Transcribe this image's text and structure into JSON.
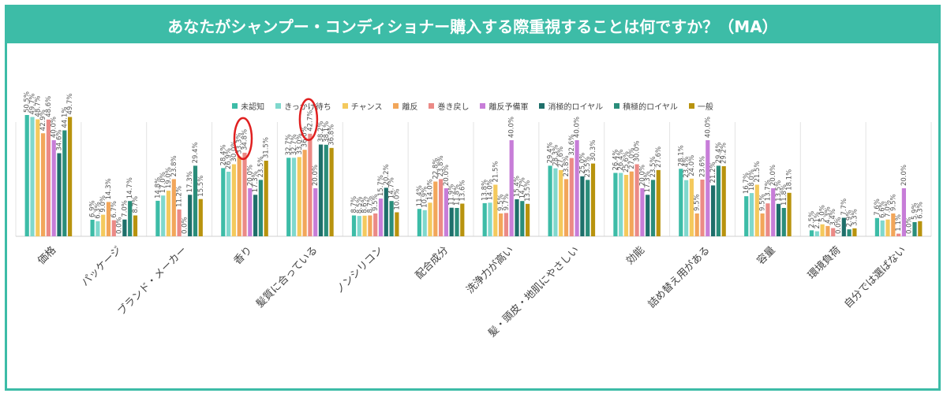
{
  "title": "あなたがシャンプー・コンディショナー購入する際重視することは何ですか？（MA）",
  "chart_data": {
    "type": "bar",
    "ylim": [
      0,
      60
    ],
    "categories": [
      "価格",
      "パッケージ",
      "ブランド・メーカー",
      "香り",
      "髪質に合っている",
      "ノンシリコン",
      "配合成分",
      "洗浄力が高い",
      "髪・頭皮・地肌にやさしい",
      "効能",
      "詰め替え用がある",
      "容量",
      "環境負荷",
      "自分では選ばない"
    ],
    "series": [
      {
        "name": "未認知",
        "color": "#3dbca7",
        "values": [
          50.5,
          6.9,
          14.8,
          28.4,
          32.7,
          8.7,
          11.4,
          13.8,
          29.4,
          26.4,
          28.1,
          16.7,
          2.5,
          7.6
        ]
      },
      {
        "name": "きっかけ待ち",
        "color": "#7fd8cd",
        "values": [
          49.7,
          6.3,
          17.0,
          26.9,
          32.7,
          8.5,
          10.9,
          14.0,
          28.3,
          26.4,
          23.4,
          18.0,
          2.1,
          6.6
        ]
      },
      {
        "name": "チャンス",
        "color": "#f4c95d",
        "values": [
          48.7,
          9.0,
          19.0,
          30.0,
          33.0,
          8.6,
          14.0,
          21.5,
          27.6,
          25.6,
          24.0,
          21.5,
          5.0,
          7.0
        ]
      },
      {
        "name": "離反",
        "color": "#f2a65a",
        "values": [
          42.9,
          14.3,
          23.8,
          33.3,
          36.0,
          8.7,
          22.8,
          9.5,
          23.8,
          27.0,
          9.5,
          9.5,
          4.3,
          9.5
        ]
      },
      {
        "name": "巻き戻し",
        "color": "#eb8a86",
        "values": [
          48.6,
          6.7,
          11.2,
          34.8,
          42.7,
          9.5,
          23.8,
          9.7,
          32.6,
          30.0,
          23.6,
          13.7,
          3.4,
          1.1
        ]
      },
      {
        "name": "離反予備軍",
        "color": "#c77dd8",
        "values": [
          40.0,
          0.0,
          0.0,
          20.0,
          20.0,
          15.7,
          20.0,
          40.0,
          40.0,
          20.0,
          40.0,
          20.0,
          0.0,
          20.0
        ]
      },
      {
        "name": "消極的ロイヤル",
        "color": "#1e6f6a",
        "values": [
          34.6,
          7.0,
          17.3,
          17.3,
          38.2,
          20.2,
          11.9,
          15.4,
          25.0,
          17.3,
          21.2,
          13.5,
          7.7,
          0.0
        ]
      },
      {
        "name": "積極的ロイヤル",
        "color": "#2a8d7a",
        "values": [
          44.1,
          14.7,
          29.4,
          23.5,
          38.1,
          14.7,
          11.8,
          14.7,
          23.5,
          23.5,
          29.4,
          11.8,
          2.9,
          5.9
        ]
      },
      {
        "name": "一般",
        "color": "#b8930e",
        "values": [
          49.7,
          8.7,
          15.5,
          31.5,
          36.8,
          10.0,
          13.6,
          13.5,
          30.3,
          27.6,
          29.2,
          18.1,
          3.3,
          6.3
        ]
      }
    ]
  },
  "annotation": {
    "color": "#e02020"
  }
}
